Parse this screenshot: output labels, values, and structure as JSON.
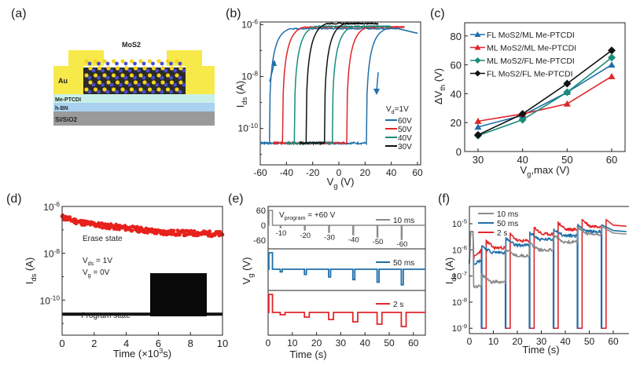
{
  "figure": {
    "panels": {
      "a": {
        "label": "(a)",
        "layers": [
          "Me-PTCDI",
          "h-BN",
          "Si/SiO2"
        ],
        "electrode": "Au",
        "channel": "MoS2",
        "colors": {
          "au": "#f7e94a",
          "me_ptcdi": "#c9f0e8",
          "hbn": "#a9d2f0",
          "si": "#9a9a9a",
          "mo": "#4b4bd0",
          "s": "#f2d51c"
        }
      },
      "b": {
        "label": "(b)"
      },
      "c": {
        "label": "(c)"
      },
      "d": {
        "label": "(d)"
      },
      "e": {
        "label": "(e)"
      },
      "f": {
        "label": "(f)"
      }
    }
  },
  "chart_data": [
    {
      "panel": "b",
      "type": "line",
      "xlabel": "Vg (V)",
      "ylabel": "Ids (A)",
      "xlim": [
        -60,
        60
      ],
      "ylim_log10": [
        -11.4,
        -5.9
      ],
      "yscale": "log",
      "xticks": [
        -60,
        -40,
        -20,
        0,
        20,
        40,
        60
      ],
      "yticks": [
        "10^-6",
        "10^-8",
        "10^-10"
      ],
      "legend_title": "Vd=1V",
      "legend_position": "bottom-right",
      "series": [
        {
          "name": "60V",
          "color": "#1f6fa8",
          "sweep_range": [
            -60,
            60
          ],
          "on_threshold_forward": 21,
          "on_threshold_backward": -53,
          "on_current": 7e-07
        },
        {
          "name": "50V",
          "color": "#e0262a",
          "sweep_range": [
            -50,
            50
          ],
          "on_threshold_forward": 6,
          "on_threshold_backward": -43,
          "on_current": 8e-07
        },
        {
          "name": "40V",
          "color": "#1a8c7a",
          "sweep_range": [
            -40,
            40
          ],
          "on_threshold_forward": -5,
          "on_threshold_backward": -34,
          "on_current": 8.5e-07
        },
        {
          "name": "30V",
          "color": "#111111",
          "sweep_range": [
            -30,
            30
          ],
          "on_threshold_forward": -11,
          "on_threshold_backward": -25,
          "on_current": 1.1e-06
        }
      ],
      "off_current": 2.5e-11,
      "arrows": [
        "up (backward sweep)",
        "down (forward sweep)"
      ]
    },
    {
      "panel": "c",
      "type": "line",
      "xlabel": "Vg,max (V)",
      "ylabel": "ΔVth (V)",
      "x": [
        30,
        40,
        50,
        60
      ],
      "xlim": [
        27,
        63
      ],
      "ylim": [
        0,
        90
      ],
      "xticks": [
        30,
        40,
        50,
        60
      ],
      "yticks": [
        0,
        20,
        40,
        60,
        80
      ],
      "legend_position": "top-left",
      "series": [
        {
          "name": "FL  MoS2/ML Me-PTCDI",
          "marker": "triangle",
          "color": "#1f6fa8",
          "values": [
            17,
            25,
            41,
            60
          ]
        },
        {
          "name": "ML MoS2/ML Me-PTCDI",
          "marker": "triangle",
          "color": "#e0262a",
          "values": [
            21,
            26,
            33,
            52
          ]
        },
        {
          "name": "ML MoS2/FL Me-PTCDI",
          "marker": "diamond",
          "color": "#1a8c7a",
          "values": [
            11,
            22,
            41,
            65
          ]
        },
        {
          "name": "FL  MoS2/FL Me-PTCDI",
          "marker": "diamond",
          "color": "#111111",
          "values": [
            11.5,
            26,
            47,
            70
          ]
        }
      ]
    },
    {
      "panel": "d",
      "type": "scatter",
      "xlabel": "Time (×10³s)",
      "ylabel": "Ids (A)",
      "xlim": [
        0,
        10
      ],
      "ylim_log10": [
        -11.5,
        -6
      ],
      "yscale": "log",
      "xticks": [
        0,
        2,
        4,
        6,
        8,
        10
      ],
      "yticks": [
        "10^-6",
        "10^-8",
        "10^-10"
      ],
      "annotations": [
        "Erase state",
        "Vds = 1V",
        "Vg = 0V",
        "Program state"
      ],
      "series": [
        {
          "name": "Erase state",
          "color": "#e8201c",
          "x": [
            0,
            1,
            2,
            3,
            4,
            5,
            6,
            7,
            8,
            9,
            10
          ],
          "values": [
            3.5e-07,
            2.2e-07,
            1.7e-07,
            1.4e-07,
            1.2e-07,
            1e-07,
            8e-08,
            7.5e-08,
            7.2e-08,
            7e-08,
            6.5e-08
          ]
        },
        {
          "name": "Program state",
          "color": "#111111",
          "x": [
            0,
            10
          ],
          "values": [
            2.5e-11,
            2.5e-11
          ]
        }
      ]
    },
    {
      "panel": "e",
      "type": "line",
      "xlabel": "Time (s)",
      "ylabel": "Vg (V)",
      "xlim": [
        0,
        65
      ],
      "xticks": [
        0,
        10,
        20,
        30,
        40,
        50,
        60
      ],
      "yticks_top": [
        60,
        0,
        -60
      ],
      "annotation": "Vprogram = +60 V",
      "pulse_labels": [
        "-10",
        "-20",
        "-30",
        "-40",
        "-50",
        "-60"
      ],
      "program_pulse_V": 60,
      "erase_pulse_times_s": [
        5,
        15,
        25,
        35,
        45,
        55
      ],
      "erase_pulse_V": [
        -10,
        -20,
        -30,
        -40,
        -50,
        -60
      ],
      "series": [
        {
          "name": "10 ms",
          "color": "#8a8a8a",
          "pulse_width": "10 ms"
        },
        {
          "name": "50 ms",
          "color": "#1f6fa8",
          "pulse_width": "50 ms"
        },
        {
          "name": "2 s",
          "color": "#e0262a",
          "pulse_width": "2 s"
        }
      ]
    },
    {
      "panel": "f",
      "type": "line",
      "xlabel": "Time (s)",
      "ylabel": "Ids (A)",
      "xlim": [
        0,
        65
      ],
      "ylim_log10": [
        -9.2,
        -4.4
      ],
      "yscale": "log",
      "xticks": [
        0,
        10,
        20,
        30,
        40,
        50,
        60
      ],
      "yticks": [
        "10^-5",
        "10^-6",
        "10^-7",
        "10^-8",
        "10^-9"
      ],
      "legend_position": "top-left",
      "series": [
        {
          "name": "10 ms",
          "color": "#8a8a8a",
          "segment_levels": [
            4e-08,
            6e-08,
            6e-07,
            1e-06,
            2e-06,
            4e-06
          ]
        },
        {
          "name": "50 ms",
          "color": "#1f6fa8",
          "segment_levels": [
            4e-07,
            8e-07,
            1.5e-06,
            2.5e-06,
            3.5e-06,
            5e-06
          ]
        },
        {
          "name": "2 s",
          "color": "#e0262a",
          "segment_levels": [
            1e-06,
            1.2e-06,
            2.2e-06,
            4e-06,
            6e-06,
            8e-06
          ]
        }
      ],
      "off_level": 1e-09
    }
  ]
}
